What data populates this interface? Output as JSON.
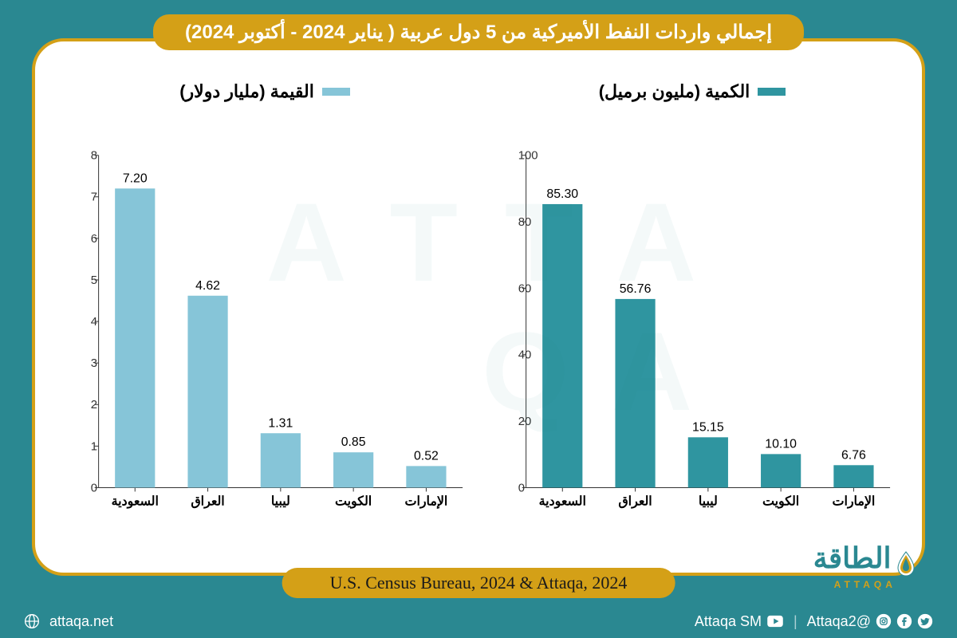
{
  "title": "إجمالي واردات النفط الأميركية من 5 دول عربية ( يناير 2024 - أكتوبر 2024)",
  "source": "U.S. Census Bureau, 2024 & Attaqa, 2024",
  "categories": [
    "السعودية",
    "العراق",
    "ليبيا",
    "الكويت",
    "الإمارات"
  ],
  "quantity_chart": {
    "legend": "الكمية (مليون برميل)",
    "color": "#2f95a0",
    "values": [
      85.3,
      56.76,
      15.15,
      10.1,
      6.76
    ],
    "labels": [
      "85.30",
      "56.76",
      "15.15",
      "10.10",
      "6.76"
    ],
    "ylim": [
      0,
      100
    ],
    "ytick_step": 20,
    "bar_width": 0.55
  },
  "value_chart": {
    "legend": "القيمة (مليار دولار)",
    "color": "#86c5d8",
    "values": [
      7.2,
      4.62,
      1.31,
      0.85,
      0.52
    ],
    "labels": [
      "7.20",
      "4.62",
      "1.31",
      "0.85",
      "0.52"
    ],
    "ylim": [
      0,
      8
    ],
    "ytick_step": 1,
    "bar_width": 0.55
  },
  "brand": {
    "ar": "الطاقة",
    "en": "ATTAQA"
  },
  "footer": {
    "twitter": "@Attaqa2",
    "youtube": "Attaqa SM",
    "web": "attaqa.net"
  },
  "colors": {
    "background": "#2a8891",
    "gold": "#d4a017",
    "panel": "#ffffff"
  }
}
